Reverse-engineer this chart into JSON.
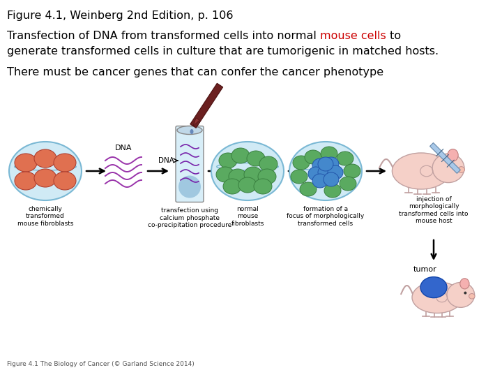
{
  "title_line": "Figure 4.1, Weinberg 2nd Edition, p. 106",
  "body_line1_black1": "Transfection of DNA from transformed cells into normal ",
  "body_line1_red": "mouse cells",
  "body_line1_black2": " to",
  "body_line2": "generate transformed cells in culture that are tumorigenic in matched hosts.",
  "body_line4": "There must be cancer genes that can confer the cancer phenotype",
  "caption": "Figure 4.1 The Biology of Cancer (© Garland Science 2014)",
  "title_fontsize": 11.5,
  "body_fontsize": 11.5,
  "caption_fontsize": 6.5,
  "bg_color": "#ffffff",
  "text_color": "#000000",
  "red_color": "#cc0000"
}
